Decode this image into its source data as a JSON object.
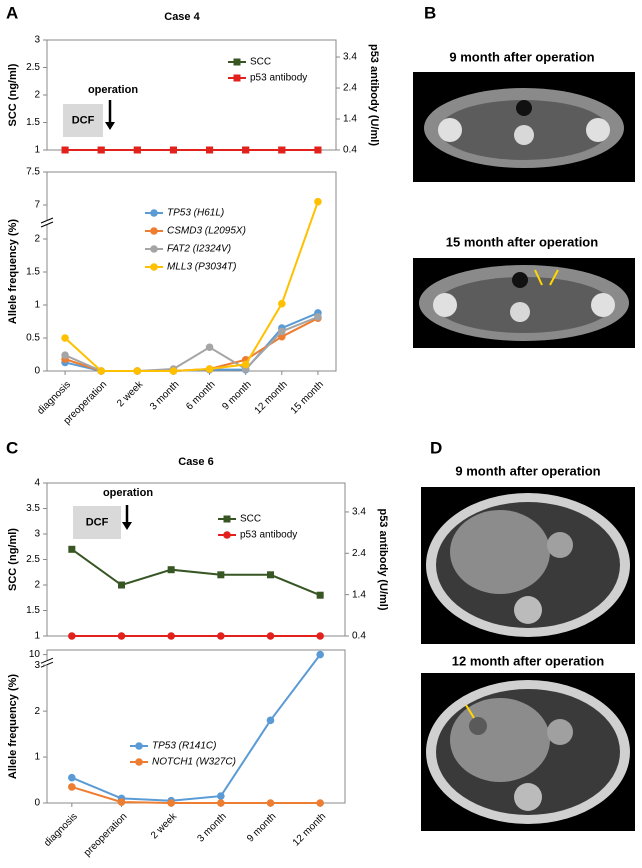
{
  "panel_labels": [
    "A",
    "B",
    "C",
    "D"
  ],
  "images": [
    {
      "title": "9 month after operation"
    },
    {
      "title": "15 month after operation"
    },
    {
      "title": "9 month after operation"
    },
    {
      "title": "12 month after operation"
    }
  ],
  "chart_data": [
    {
      "type": "line",
      "title": "Case 4",
      "ylabel": "SCC (ng/ml)",
      "y2label": "p53 antibody (U/ml)",
      "ylim": [
        1,
        3
      ],
      "yticks": [
        1,
        1.5,
        2,
        2.5,
        3
      ],
      "y2lim": [
        0.4,
        3.95
      ],
      "y2ticks": [
        0.4,
        1.4,
        2.4,
        3.4
      ],
      "annotations": [
        "DCF",
        "operation"
      ],
      "series": [
        {
          "name": "SCC",
          "color": "#375623",
          "marker": "square",
          "values": [
            1,
            1,
            1,
            1,
            1,
            1,
            1,
            1
          ]
        },
        {
          "name": "p53 antibody",
          "color": "#e3211c",
          "marker": "square",
          "axis": "y2",
          "values": [
            0.4,
            0.4,
            0.4,
            0.4,
            0.4,
            0.4,
            0.4,
            0.4
          ]
        }
      ]
    },
    {
      "type": "line",
      "ylabel": "Allele frequency (%)",
      "categories": [
        "diagnosis",
        "preoperation",
        "2 week",
        "3 month",
        "6 month",
        "9 month",
        "12 month",
        "15 month"
      ],
      "ylim": [
        0,
        7.5
      ],
      "ybreak": [
        2,
        7
      ],
      "yticks": [
        0,
        0.5,
        1,
        1.5,
        2,
        7,
        7.5
      ],
      "series": [
        {
          "name": "TP53 (H61L)",
          "color": "#5b9bd5",
          "marker": "circle",
          "values": [
            0.13,
            0,
            0,
            0,
            0.02,
            0.02,
            0.65,
            0.88
          ]
        },
        {
          "name": "CSMD3 (L2095X)",
          "color": "#ed7d31",
          "marker": "circle",
          "values": [
            0.18,
            0,
            0,
            0,
            0.03,
            0.17,
            0.52,
            0.8
          ]
        },
        {
          "name": "FAT2 (I2324V)",
          "color": "#a5a5a5",
          "marker": "circle",
          "values": [
            0.24,
            0,
            0,
            0.03,
            0.36,
            0.03,
            0.6,
            0.82
          ]
        },
        {
          "name": "MLL3 (P3034T)",
          "color": "#ffc000",
          "marker": "circle",
          "values": [
            0.5,
            0,
            0,
            0,
            0.03,
            0.1,
            1.02,
            7.05
          ]
        }
      ]
    },
    {
      "type": "line",
      "title": "Case 6",
      "ylabel": "SCC (ng/ml)",
      "y2label": "p53 antibody (U/ml)",
      "ylim": [
        1,
        4
      ],
      "yticks": [
        1,
        1.5,
        2,
        2.5,
        3,
        3.5,
        4
      ],
      "y2lim": [
        0.4,
        4.1
      ],
      "y2ticks": [
        0.4,
        1.4,
        2.4,
        3.4
      ],
      "annotations": [
        "DCF",
        "operation"
      ],
      "series": [
        {
          "name": "SCC",
          "color": "#375623",
          "marker": "square",
          "values": [
            2.7,
            2.0,
            2.3,
            2.2,
            2.2,
            1.8
          ]
        },
        {
          "name": "p53 antibody",
          "color": "#e3211c",
          "marker": "circle",
          "axis": "y2",
          "values": [
            0.4,
            0.4,
            0.4,
            0.4,
            0.4,
            0.4
          ]
        }
      ]
    },
    {
      "type": "line",
      "ylabel": "Allele frequency (%)",
      "categories": [
        "diagnosis",
        "preoperation",
        "2 week",
        "3 month",
        "9 month",
        "12 month"
      ],
      "ylim": [
        0,
        10.1
      ],
      "ybreak": [
        3,
        9.9
      ],
      "yticks": [
        0,
        1,
        2,
        3,
        10
      ],
      "series": [
        {
          "name": "TP53 (R141C)",
          "color": "#5b9bd5",
          "marker": "circle",
          "values": [
            0.55,
            0.1,
            0.05,
            0.15,
            1.8,
            10
          ]
        },
        {
          "name": "NOTCH1 (W327C)",
          "color": "#ed7d31",
          "marker": "circle",
          "values": [
            0.35,
            0.02,
            0,
            0,
            0,
            0
          ]
        }
      ]
    }
  ]
}
